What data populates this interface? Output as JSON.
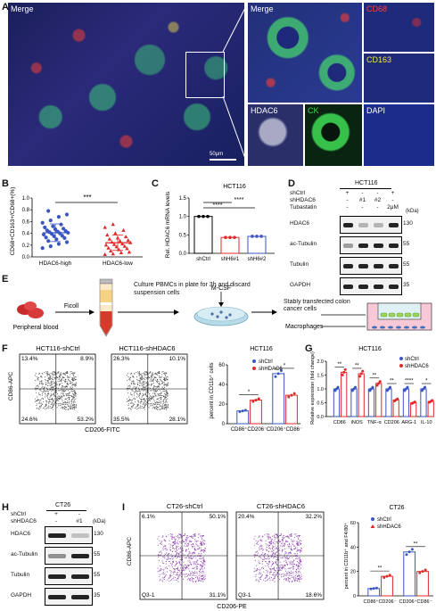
{
  "panels": {
    "A": {
      "label": "A",
      "main_label": "Merge",
      "scale_bar": "50μm",
      "tiles": [
        "Merge",
        "CD68",
        "CD163",
        "HDAC6",
        "CK",
        "DAPI"
      ],
      "colors": {
        "cd68": "#ff3b3b",
        "cd163": "#f0e34a",
        "hdac6": "#ffffff",
        "ck": "#39d24a",
        "dapi": "#5a8bff"
      }
    },
    "B": {
      "label": "B",
      "ylabel": "CD68+CD163+/CD68+(%)",
      "yticks": [
        "0.0",
        "0.2",
        "0.4",
        "0.6",
        "0.8",
        "1.0"
      ],
      "groups": [
        "HDAC6-high",
        "HDAC6-low"
      ],
      "sig": "***",
      "colors": {
        "high": "#3b56c2",
        "low": "#e02a2a"
      }
    },
    "C": {
      "label": "C",
      "title": "HCT116",
      "ylabel": "Rel. HDAC6 mRNA levels",
      "yticks": [
        "0.0",
        "0.5",
        "1.0",
        "1.5"
      ],
      "categories": [
        "shCtrl",
        "shH6#1",
        "shH6#2"
      ],
      "sig": [
        "****",
        "****"
      ]
    },
    "D": {
      "label": "D",
      "title": "HCT116",
      "rows": [
        {
          "name": "shCtrl",
          "marks": [
            "+",
            "-",
            "-",
            "+"
          ]
        },
        {
          "name": "shHDAC6",
          "marks": [
            "-",
            "#1",
            "#2",
            "-"
          ]
        },
        {
          "name": "Tubastatin",
          "marks": [
            "-",
            "-",
            "-",
            "2μM"
          ]
        }
      ],
      "kda_unit": "(kDa)",
      "blots": [
        {
          "name": "HDAC6",
          "kda": "130"
        },
        {
          "name": "ac-Tubulin",
          "kda": "55"
        },
        {
          "name": "Tubulin",
          "kda": "55"
        },
        {
          "name": "GAPDH",
          "kda": "35"
        }
      ]
    },
    "E": {
      "label": "E",
      "blood": "Peripheral blood",
      "ficoll": "Ficoll",
      "culture": "Culture PBMCs in plate for 3h and discard suspension cells",
      "mcsf": "M-CSF",
      "stably": "Stably transfected colon cancer cells",
      "macro": "Macrophages"
    },
    "F": {
      "label": "F",
      "plot1": {
        "title": "HCT116-shCtrl",
        "q": [
          "13.4%",
          "8.9%",
          "24.6%",
          "53.2%"
        ]
      },
      "plot2": {
        "title": "HCT116-shHDAC6",
        "q": [
          "26.3%",
          "10.1%",
          "35.5%",
          "28.1%"
        ]
      },
      "ylabel": "CD86-APC",
      "xlabel": "CD206-FITC",
      "bar": {
        "title": "HCT116",
        "ylabel": "percent in CD11b⁺ cells",
        "yticks": [
          "0",
          "20",
          "40",
          "60"
        ],
        "legend": [
          "shCtrl",
          "shHDAC6"
        ],
        "categories": [
          "CD86⁺CD206⁻",
          "CD206⁺CD86⁻"
        ],
        "sig": [
          "*",
          "*"
        ]
      }
    },
    "G": {
      "label": "G",
      "title": "HCT116",
      "ylabel": "Relative expression (fold change)",
      "yticks": [
        "0.0",
        "0.5",
        "1.0",
        "1.5",
        "2.0"
      ],
      "legend": [
        "shCtrl",
        "shHDAC6"
      ],
      "categories": [
        "CD86",
        "iNOS",
        "TNF-α",
        "CD206",
        "ARG-1",
        "IL-10"
      ],
      "sig": [
        "**",
        "**",
        "**",
        "**",
        "****",
        "*"
      ]
    },
    "H": {
      "label": "H",
      "title": "CT26",
      "rows": [
        {
          "name": "shCtrl",
          "marks": [
            "+",
            "-"
          ]
        },
        {
          "name": "shHDAC6",
          "marks": [
            "-",
            "#1"
          ]
        }
      ],
      "kda_unit": "(kDa)",
      "blots": [
        {
          "name": "HDAC6",
          "kda": "130"
        },
        {
          "name": "ac-Tubulin",
          "kda": "55"
        },
        {
          "name": "Tubulin",
          "kda": "55"
        },
        {
          "name": "GAPDH",
          "kda": "35"
        }
      ]
    },
    "I": {
      "label": "I",
      "plot1": {
        "title": "CT26-shCtrl",
        "q": [
          "6.1%",
          "50.1%",
          "Q3-1",
          "31.1%"
        ]
      },
      "plot2": {
        "title": "CT26-shHDAC6",
        "q": [
          "20.4%",
          "32.2%",
          "Q3-1",
          "18.6%"
        ]
      },
      "ylabel": "CD86-APC",
      "xlabel": "CD206-PE",
      "bar": {
        "title": "CT26",
        "ylabel": "percent in CD11b⁺ and F4/80⁺",
        "yticks": [
          "0",
          "20",
          "40",
          "60"
        ],
        "legend": [
          "shCtrl",
          "shHDAC6"
        ],
        "categories": [
          "CD86⁺CD206⁻",
          "CD206⁺CD86⁻"
        ],
        "sig": [
          "**",
          "**"
        ]
      }
    }
  },
  "chart_data": [
    {
      "type": "scatter",
      "panel": "B",
      "ylabel": "CD68+CD163+/CD68+(%)",
      "ylim": [
        0,
        1.0
      ],
      "categories": [
        "HDAC6-high",
        "HDAC6-low"
      ],
      "series": [
        {
          "name": "HDAC6-high",
          "values": [
            0.15,
            0.18,
            0.22,
            0.25,
            0.27,
            0.3,
            0.32,
            0.33,
            0.35,
            0.36,
            0.38,
            0.39,
            0.4,
            0.41,
            0.42,
            0.43,
            0.44,
            0.45,
            0.47,
            0.48,
            0.5,
            0.52,
            0.55,
            0.58,
            0.62,
            0.68,
            0.72,
            0.78
          ],
          "mean": 0.41,
          "sd": 0.15
        },
        {
          "name": "HDAC6-low",
          "values": [
            0.04,
            0.05,
            0.07,
            0.08,
            0.1,
            0.12,
            0.14,
            0.15,
            0.17,
            0.18,
            0.2,
            0.21,
            0.22,
            0.24,
            0.25,
            0.27,
            0.28,
            0.3,
            0.32,
            0.34,
            0.37,
            0.4,
            0.45,
            0.5,
            0.55
          ],
          "mean": 0.24,
          "sd": 0.13
        }
      ]
    },
    {
      "type": "bar",
      "panel": "C",
      "title": "HCT116",
      "ylabel": "Rel. HDAC6 mRNA levels",
      "ylim": [
        0,
        1.5
      ],
      "categories": [
        "shCtrl",
        "shH6#1",
        "shH6#2"
      ],
      "values": [
        1.0,
        0.43,
        0.46
      ]
    },
    {
      "type": "bar",
      "panel": "F",
      "title": "HCT116",
      "ylabel": "percent in CD11b⁺ cells",
      "ylim": [
        0,
        60
      ],
      "categories": [
        "CD86⁺CD206⁻",
        "CD206⁺CD86⁻"
      ],
      "series": [
        {
          "name": "shCtrl",
          "values": [
            13,
            51
          ]
        },
        {
          "name": "shHDAC6",
          "values": [
            24,
            29
          ]
        }
      ]
    },
    {
      "type": "bar",
      "panel": "G",
      "title": "HCT116",
      "ylabel": "Relative expression (fold change)",
      "ylim": [
        0,
        2.0
      ],
      "categories": [
        "CD86",
        "iNOS",
        "TNF-α",
        "CD206",
        "ARG-1",
        "IL-10"
      ],
      "series": [
        {
          "name": "shCtrl",
          "values": [
            1.0,
            1.0,
            1.0,
            1.0,
            1.0,
            1.0
          ]
        },
        {
          "name": "shHDAC6",
          "values": [
            1.6,
            1.55,
            1.2,
            0.6,
            0.5,
            0.55
          ]
        }
      ]
    },
    {
      "type": "bar",
      "panel": "I",
      "title": "CT26",
      "ylabel": "percent in CD11b⁺ and F4/80⁺",
      "ylim": [
        0,
        60
      ],
      "categories": [
        "CD86⁺CD206⁻",
        "CD206⁺CD86⁻"
      ],
      "series": [
        {
          "name": "shCtrl",
          "values": [
            6,
            36
          ]
        },
        {
          "name": "shHDAC6",
          "values": [
            16,
            20
          ]
        }
      ]
    }
  ]
}
